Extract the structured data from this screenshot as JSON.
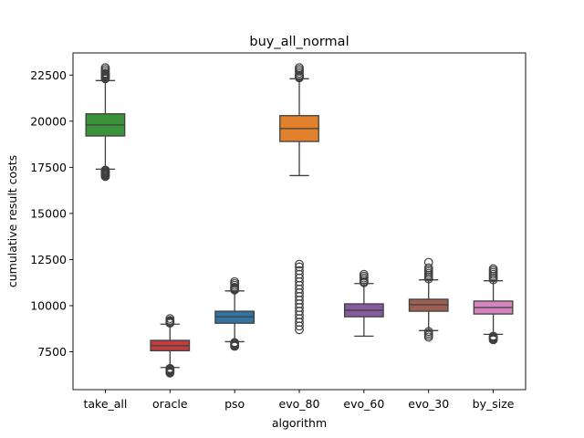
{
  "chart_data": {
    "type": "box",
    "title": "buy_all_normal",
    "xlabel": "algorithm",
    "ylabel": "cumulative result costs",
    "ylim": [
      5450,
      23700
    ],
    "yticks": [
      7500,
      10000,
      12500,
      15000,
      17500,
      20000,
      22500
    ],
    "ytick_labels": [
      "7500",
      "10000",
      "12500",
      "15000",
      "17500",
      "20000",
      "22500"
    ],
    "grid": false,
    "legend": "none",
    "categories": [
      "take_all",
      "oracle",
      "pso",
      "evo_80",
      "evo_60",
      "evo_30",
      "by_size"
    ],
    "boxes": [
      {
        "category": "take_all",
        "color": "#3a923a",
        "whisker_low": 17400,
        "q1": 19200,
        "median": 19800,
        "q3": 20400,
        "whisker_high": 22200,
        "outliers_low": [
          17000,
          17050,
          17100,
          17150,
          17200,
          17250,
          17300,
          17350
        ],
        "outliers_high": [
          22300,
          22350,
          22400,
          22450,
          22500,
          22550,
          22600,
          22700,
          22800,
          22900
        ]
      },
      {
        "category": "oracle",
        "color": "#c03d3e",
        "whisker_low": 6650,
        "q1": 7560,
        "median": 7830,
        "q3": 8120,
        "whisker_high": 9000,
        "outliers_low": [
          6350,
          6400,
          6450,
          6500,
          6550,
          6600
        ],
        "outliers_high": [
          9050,
          9100,
          9150,
          9200,
          9300
        ]
      },
      {
        "category": "pso",
        "color": "#3274a1",
        "whisker_low": 8050,
        "q1": 9050,
        "median": 9400,
        "q3": 9700,
        "whisker_high": 10800,
        "outliers_low": [
          7800,
          7850,
          7900,
          7950,
          8000
        ],
        "outliers_high": [
          10850,
          10900,
          10950,
          11000,
          11100,
          11200,
          11300
        ]
      },
      {
        "category": "evo_80",
        "color": "#e1812c",
        "whisker_low": 17050,
        "q1": 18900,
        "median": 19600,
        "q3": 20300,
        "whisker_high": 22300,
        "outliers_low": [
          8700,
          8900,
          9100,
          9300,
          9500,
          9700,
          9900,
          10100,
          10300,
          10500,
          10700,
          10900,
          11100,
          11300,
          11500,
          11700,
          11900,
          12100,
          12250
        ],
        "outliers_high": [
          22350,
          22400,
          22450,
          22500,
          22600,
          22700,
          22800,
          22900
        ]
      },
      {
        "category": "evo_60",
        "color": "#845b9c",
        "whisker_low": 8350,
        "q1": 9400,
        "median": 9750,
        "q3": 10100,
        "whisker_high": 11200,
        "outliers_low": [],
        "outliers_high": [
          11250,
          11300,
          11400,
          11500,
          11600,
          11700
        ]
      },
      {
        "category": "evo_30",
        "color": "#9c5f52",
        "whisker_low": 8650,
        "q1": 9700,
        "median": 10050,
        "q3": 10350,
        "whisker_high": 11400,
        "outliers_low": [
          8300,
          8400,
          8500,
          8600
        ],
        "outliers_high": [
          11450,
          11550,
          11650,
          11750,
          11850,
          11950,
          12050,
          12350
        ]
      },
      {
        "category": "by_size",
        "color": "#d684bd",
        "whisker_low": 8450,
        "q1": 9550,
        "median": 9900,
        "q3": 10250,
        "whisker_high": 11350,
        "outliers_low": [
          8150,
          8200,
          8250,
          8300,
          8350
        ],
        "outliers_high": [
          11400,
          11500,
          11600,
          11700,
          11800,
          11900,
          12000
        ]
      }
    ]
  }
}
